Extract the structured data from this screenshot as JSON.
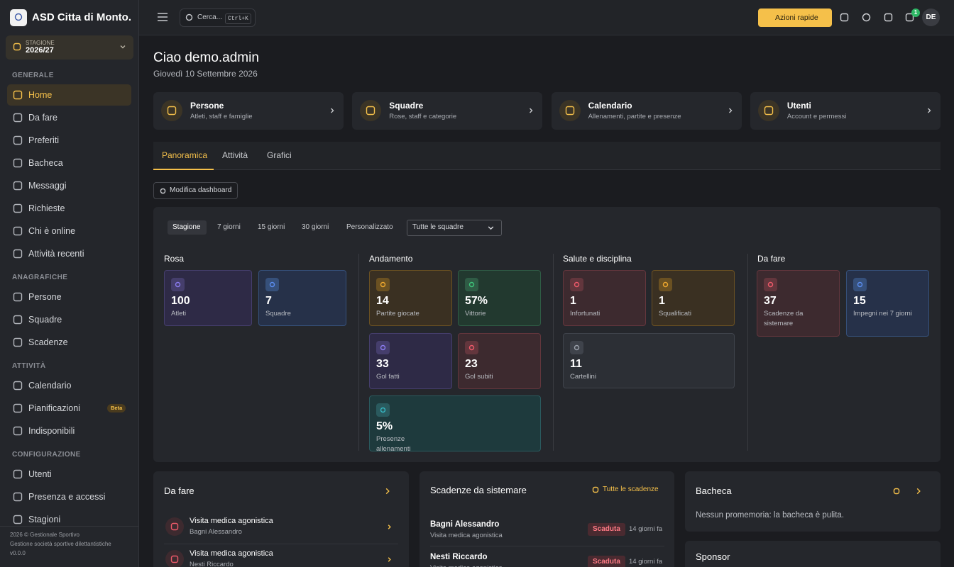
{
  "sidebar": {
    "brand": "ASD Citta di Monto...",
    "season": {
      "label": "STAGIONE",
      "value": "2026/27"
    },
    "sections": [
      {
        "title": "GENERALE",
        "items": [
          {
            "label": "Home"
          },
          {
            "label": "Da fare"
          },
          {
            "label": "Preferiti"
          },
          {
            "label": "Bacheca"
          },
          {
            "label": "Messaggi"
          },
          {
            "label": "Richieste"
          },
          {
            "label": "Chi è online"
          },
          {
            "label": "Attività recenti"
          }
        ]
      },
      {
        "title": "ANAGRAFICHE",
        "items": [
          {
            "label": "Persone"
          },
          {
            "label": "Squadre"
          },
          {
            "label": "Scadenze"
          }
        ]
      },
      {
        "title": "ATTIVITÀ",
        "items": [
          {
            "label": "Calendario"
          },
          {
            "label": "Pianificazioni",
            "badge": "Beta"
          },
          {
            "label": "Indisponibili"
          }
        ]
      },
      {
        "title": "CONFIGURAZIONE",
        "items": [
          {
            "label": "Utenti"
          },
          {
            "label": "Presenza e accessi"
          },
          {
            "label": "Stagioni"
          }
        ]
      }
    ],
    "footer": [
      "2026 © Gestionale Sportivo",
      "Gestione società sportive dilettantistiche",
      "v0.0.0"
    ]
  },
  "topbar": {
    "search": "Cerca...",
    "shortcut": "Ctrl+K",
    "quick_actions": "Azioni rapide",
    "notification_count": 1,
    "avatar": "DE"
  },
  "header": {
    "title": "Ciao demo.admin",
    "date": "Giovedì 10 Settembre 2026"
  },
  "shortcuts": [
    {
      "title": "Persone",
      "subtitle": "Atleti, staff e famiglie"
    },
    {
      "title": "Squadre",
      "subtitle": "Rose, staff e categorie"
    },
    {
      "title": "Calendario",
      "subtitle": "Allenamenti, partite e presenze"
    },
    {
      "title": "Utenti",
      "subtitle": "Account e permessi"
    }
  ],
  "tabs": [
    "Panoramica",
    "Attività",
    "Grafici"
  ],
  "edit_button": "Modifica dashboard",
  "filters": {
    "periods": [
      "Stagione",
      "7 giorni",
      "15 giorni",
      "30 giorni",
      "Personalizzato"
    ],
    "team_select": "Tutte le squadre"
  },
  "groups": [
    {
      "title": "Rosa",
      "stats": [
        {
          "value": 100,
          "label": "Atleti"
        },
        {
          "value": 7,
          "label": "Squadre"
        }
      ]
    },
    {
      "title": "Andamento",
      "stats": [
        {
          "value": 14,
          "label": "Partite giocate"
        },
        {
          "value": "57%",
          "label": "Vittorie"
        },
        {
          "value": 33,
          "label": "Gol fatti"
        },
        {
          "value": 23,
          "label": "Gol subiti"
        },
        {
          "value": "5%",
          "label": "Presenze allenamenti"
        }
      ]
    },
    {
      "title": "Salute e disciplina",
      "stats": [
        {
          "value": 1,
          "label": "Infortunati"
        },
        {
          "value": 1,
          "label": "Squalificati"
        },
        {
          "value": 11,
          "label": "Cartellini"
        }
      ]
    },
    {
      "title": "Da fare",
      "stats": [
        {
          "value": 37,
          "label": "Scadenze da sistemare"
        },
        {
          "value": 15,
          "label": "Impegni nei 7 giorni"
        }
      ]
    }
  ],
  "panels": {
    "todo": {
      "title": "Da fare",
      "items": [
        {
          "title": "Visita medica agonistica",
          "subtitle": "Bagni Alessandro"
        },
        {
          "title": "Visita medica agonistica",
          "subtitle": "Nesti Riccardo"
        }
      ]
    },
    "deadlines": {
      "title": "Scadenze da sistemare",
      "link": "Tutte le scadenze",
      "items": [
        {
          "name": "Bagni Alessandro",
          "detail": "Visita medica agonistica",
          "status": "Scaduta",
          "age": "14 giorni fa"
        },
        {
          "name": "Nesti Riccardo",
          "detail": "Visita medica agonistica",
          "status": "Scaduta",
          "age": "14 giorni fa"
        }
      ]
    },
    "board": {
      "title": "Bacheca",
      "empty": "Nessun promemoria: la bacheca è pulita."
    },
    "sponsor": {
      "title": "Sponsor"
    }
  }
}
